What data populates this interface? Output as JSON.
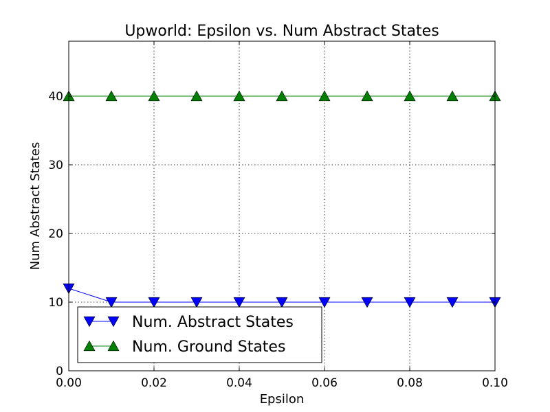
{
  "chart_data": {
    "type": "line",
    "title": "Upworld: Epsilon vs. Num Abstract States",
    "xlabel": "Epsilon",
    "ylabel": "Num Abstract States",
    "xlim": [
      0.0,
      0.1
    ],
    "ylim": [
      0,
      48
    ],
    "grid": true,
    "legend_position": "bottom-left",
    "x": [
      0.0,
      0.01,
      0.02,
      0.03,
      0.04,
      0.05,
      0.06,
      0.07,
      0.08,
      0.09,
      0.1
    ],
    "x_ticks": [
      0.0,
      0.02,
      0.04,
      0.06,
      0.08,
      0.1
    ],
    "x_tick_labels": [
      "0.00",
      "0.02",
      "0.04",
      "0.06",
      "0.08",
      "0.10"
    ],
    "y_ticks": [
      0,
      10,
      20,
      30,
      40
    ],
    "y_tick_labels": [
      "0",
      "10",
      "20",
      "30",
      "40"
    ],
    "series": [
      {
        "name": "Num. Abstract States",
        "color": "#0000ff",
        "marker": "triangle-down",
        "values": [
          12,
          10,
          10,
          10,
          10,
          10,
          10,
          10,
          10,
          10,
          10
        ]
      },
      {
        "name": "Num. Ground States",
        "color": "#008000",
        "marker": "triangle-up",
        "values": [
          40,
          40,
          40,
          40,
          40,
          40,
          40,
          40,
          40,
          40,
          40
        ]
      }
    ]
  }
}
